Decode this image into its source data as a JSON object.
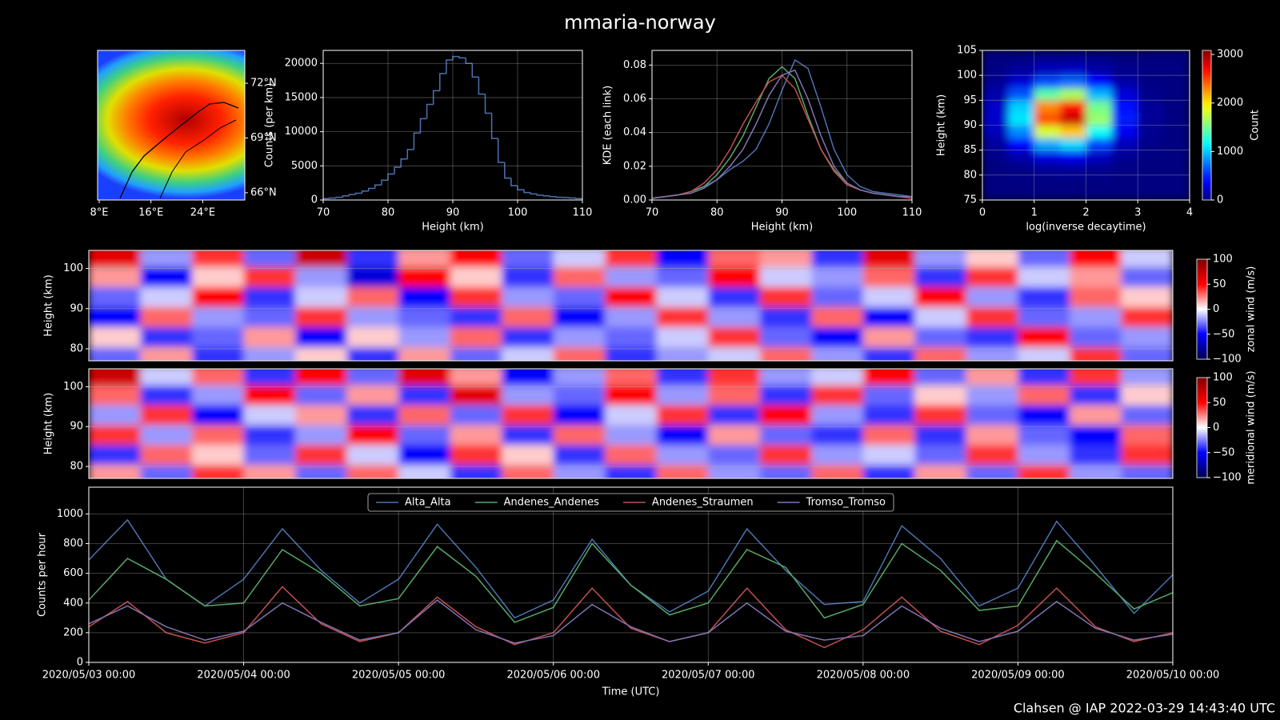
{
  "title": "mmaria-norway",
  "footer": "Clahsen @ IAP 2022-03-29 14:43:40 UTC",
  "chart_data": [
    {
      "type": "map",
      "xlim": [
        7.75,
        30.5
      ],
      "ylim": [
        65.6,
        73.8
      ],
      "xticks": [
        {
          "value": 8,
          "label": "8°E"
        },
        {
          "value": 16,
          "label": "16°E"
        },
        {
          "value": 24,
          "label": "24°E"
        }
      ],
      "yticks": [
        {
          "value": 66,
          "label": "66°N"
        },
        {
          "value": 69,
          "label": "69°N"
        },
        {
          "value": 72,
          "label": "72°N"
        }
      ],
      "ytick_side": "right"
    },
    {
      "type": "histogram",
      "xlabel": "Height (km)",
      "ylabel": "Counts (per km)",
      "color": "#4c72b0",
      "bins": [
        70,
        71,
        72,
        73,
        74,
        75,
        76,
        77,
        78,
        79,
        80,
        81,
        82,
        83,
        84,
        85,
        86,
        87,
        88,
        89,
        90,
        91,
        92,
        93,
        94,
        95,
        96,
        97,
        98,
        99,
        100,
        101,
        102,
        103,
        104,
        105,
        106,
        107,
        108,
        109,
        110
      ],
      "counts": [
        200,
        300,
        400,
        600,
        800,
        1000,
        1300,
        1700,
        2200,
        2900,
        3800,
        4800,
        6000,
        7400,
        9800,
        11900,
        14000,
        16000,
        18500,
        20500,
        21000,
        20800,
        20000,
        18000,
        15500,
        12700,
        9000,
        5500,
        3200,
        2100,
        1500,
        1100,
        900,
        700,
        600,
        500,
        400,
        350,
        300,
        200
      ],
      "xlim": [
        70,
        110
      ],
      "ylim": [
        0,
        21900
      ],
      "xticks": [
        70,
        80,
        90,
        100,
        110
      ],
      "yticks": [
        0,
        5000,
        10000,
        15000,
        20000
      ],
      "grid": true
    },
    {
      "type": "line",
      "xlabel": "Height (km)",
      "ylabel": "KDE (each link)",
      "x": [
        70,
        72,
        74,
        76,
        78,
        80,
        82,
        84,
        86,
        88,
        90,
        92,
        94,
        96,
        98,
        100,
        102,
        104,
        106,
        108,
        110
      ],
      "series": [
        {
          "color": "#4c72b0",
          "values": [
            0.001,
            0.002,
            0.003,
            0.005,
            0.008,
            0.012,
            0.018,
            0.023,
            0.03,
            0.045,
            0.065,
            0.083,
            0.078,
            0.055,
            0.03,
            0.015,
            0.008,
            0.005,
            0.004,
            0.003,
            0.002
          ]
        },
        {
          "color": "#55a868",
          "values": [
            0.001,
            0.002,
            0.003,
            0.005,
            0.008,
            0.015,
            0.025,
            0.038,
            0.055,
            0.072,
            0.079,
            0.072,
            0.05,
            0.03,
            0.018,
            0.01,
            0.006,
            0.004,
            0.003,
            0.002,
            0.002
          ]
        },
        {
          "color": "#c44e52",
          "values": [
            0.001,
            0.002,
            0.003,
            0.005,
            0.01,
            0.018,
            0.03,
            0.045,
            0.058,
            0.07,
            0.074,
            0.066,
            0.048,
            0.03,
            0.017,
            0.009,
            0.006,
            0.004,
            0.003,
            0.002,
            0.001
          ]
        },
        {
          "color": "#8172b2",
          "values": [
            0.001,
            0.002,
            0.003,
            0.004,
            0.007,
            0.012,
            0.02,
            0.03,
            0.045,
            0.062,
            0.074,
            0.077,
            0.06,
            0.038,
            0.02,
            0.01,
            0.006,
            0.004,
            0.003,
            0.002,
            0.002
          ]
        }
      ],
      "xlim": [
        70,
        110
      ],
      "ylim": [
        0,
        0.0887
      ],
      "xticks": [
        70,
        80,
        90,
        100,
        110
      ],
      "yticks": [
        {
          "value": 0,
          "label": "0.00"
        },
        {
          "value": 0.02,
          "label": "0.02"
        },
        {
          "value": 0.04,
          "label": "0.04"
        },
        {
          "value": 0.06,
          "label": "0.06"
        },
        {
          "value": 0.08,
          "label": "0.08"
        }
      ],
      "grid": true
    },
    {
      "type": "hist2d",
      "xlabel": "log(inverse decaytime)",
      "ylabel": "Height (km)",
      "x": [
        0.25,
        0.75,
        1.25,
        1.75,
        2.25,
        2.75,
        3.25,
        3.75
      ],
      "y": [
        76.25,
        78.75,
        81.25,
        83.75,
        86.25,
        88.75,
        91.25,
        93.75,
        96.25,
        98.75,
        101.25,
        103.75
      ],
      "values": [
        [
          0,
          0,
          1,
          1,
          1,
          0,
          0,
          0
        ],
        [
          1,
          4,
          10,
          12,
          7,
          2,
          0,
          0
        ],
        [
          6,
          30,
          68,
          79,
          45,
          13,
          2,
          0
        ],
        [
          29,
          133,
          302,
          349,
          198,
          58,
          8,
          1
        ],
        [
          86,
          400,
          907,
          1048,
          594,
          173,
          25,
          2
        ],
        [
          173,
          799,
          1814,
          2095,
          1188,
          346,
          50,
          3
        ],
        [
          235,
          1088,
          2470,
          2852,
          1617,
          470,
          68,
          5
        ],
        [
          218,
          1010,
          2293,
          2648,
          1502,
          437,
          63,
          4
        ],
        [
          137,
          633,
          1436,
          1659,
          941,
          274,
          39,
          3
        ],
        [
          58,
          266,
          605,
          698,
          396,
          115,
          17,
          1
        ],
        [
          17,
          77,
          174,
          201,
          114,
          33,
          5,
          0
        ],
        [
          3,
          14,
          33,
          38,
          21,
          6,
          1,
          0
        ]
      ],
      "xlim": [
        0,
        4
      ],
      "ylim": [
        75,
        105
      ],
      "xticks": [
        0,
        1,
        2,
        3,
        4
      ],
      "yticks": [
        75,
        80,
        85,
        90,
        95,
        100,
        105
      ],
      "grid": true,
      "colorbar": {
        "label": "Count",
        "lim": [
          0,
          3084
        ],
        "ticks": [
          0,
          1000,
          2000,
          3000
        ],
        "colormap": "jet"
      }
    },
    {
      "type": "heatmap",
      "ylabel": "Height (km)",
      "times": [
        "2020/05/03 04:00",
        "2020/05/03 12:00",
        "2020/05/03 20:00",
        "2020/05/04 04:00",
        "2020/05/04 12:00",
        "2020/05/04 20:00",
        "2020/05/05 04:00",
        "2020/05/05 12:00",
        "2020/05/05 20:00",
        "2020/05/06 04:00",
        "2020/05/06 12:00",
        "2020/05/06 20:00",
        "2020/05/07 04:00",
        "2020/05/07 12:00",
        "2020/05/07 20:00",
        "2020/05/08 04:00",
        "2020/05/08 12:00",
        "2020/05/08 20:00",
        "2020/05/09 04:00",
        "2020/05/09 12:00",
        "2020/05/09 20:00"
      ],
      "heights": [
        78,
        83,
        88,
        93,
        98,
        103
      ],
      "values": [
        [
          -30,
          20,
          -40,
          -20,
          10,
          -40,
          20,
          -30,
          -10,
          30,
          -40,
          -20,
          -10,
          30,
          -20,
          -40,
          30,
          -20,
          -10,
          40,
          -30
        ],
        [
          10,
          -40,
          -30,
          20,
          -50,
          10,
          -20,
          30,
          -40,
          -20,
          -30,
          -10,
          40,
          -30,
          -50,
          20,
          -30,
          -40,
          50,
          -30,
          -20
        ],
        [
          -50,
          30,
          -20,
          -30,
          40,
          -20,
          -30,
          -40,
          30,
          -50,
          -20,
          40,
          -20,
          -40,
          30,
          -50,
          -10,
          40,
          -30,
          -20,
          40
        ],
        [
          -30,
          -10,
          50,
          -40,
          -10,
          30,
          -50,
          40,
          -20,
          -30,
          50,
          -10,
          -40,
          40,
          -30,
          -10,
          50,
          -20,
          -40,
          30,
          10
        ],
        [
          20,
          -50,
          10,
          40,
          -20,
          -60,
          50,
          10,
          -40,
          30,
          -20,
          -30,
          50,
          -10,
          -20,
          30,
          -40,
          40,
          -10,
          20,
          -30
        ],
        [
          60,
          -20,
          40,
          -30,
          70,
          -40,
          20,
          50,
          -30,
          -10,
          40,
          -50,
          30,
          20,
          -40,
          60,
          -20,
          10,
          -30,
          50,
          -10
        ]
      ],
      "xlim": [
        "2020/05/03 00:00",
        "2020/05/10 00:00"
      ],
      "ylim": [
        77,
        104.5
      ],
      "yticks": [
        80,
        90,
        100
      ],
      "grid": true,
      "colorbar": {
        "label": "zonal wind (m/s)",
        "lim": [
          -100,
          100
        ],
        "ticks": [
          {
            "value": -100,
            "label": "−100"
          },
          {
            "value": -50,
            "label": "−50"
          },
          0,
          50,
          100
        ],
        "colormap": "seismic"
      }
    },
    {
      "type": "heatmap",
      "ylabel": "Height (km)",
      "times": [
        "2020/05/03 04:00",
        "2020/05/03 12:00",
        "2020/05/03 20:00",
        "2020/05/04 04:00",
        "2020/05/04 12:00",
        "2020/05/04 20:00",
        "2020/05/05 04:00",
        "2020/05/05 12:00",
        "2020/05/05 20:00",
        "2020/05/06 04:00",
        "2020/05/06 12:00",
        "2020/05/06 20:00",
        "2020/05/07 04:00",
        "2020/05/07 12:00",
        "2020/05/07 20:00",
        "2020/05/08 04:00",
        "2020/05/08 12:00",
        "2020/05/08 20:00",
        "2020/05/09 04:00",
        "2020/05/09 12:00",
        "2020/05/09 20:00"
      ],
      "heights": [
        78,
        83,
        88,
        93,
        98,
        103
      ],
      "values": [
        [
          20,
          -30,
          40,
          20,
          -30,
          30,
          -10,
          -40,
          30,
          -20,
          -40,
          30,
          -20,
          -30,
          30,
          -40,
          20,
          -30,
          40,
          -20,
          -30
        ],
        [
          -40,
          30,
          10,
          -30,
          40,
          -10,
          -50,
          40,
          10,
          -40,
          30,
          -20,
          -30,
          40,
          -20,
          -10,
          -30,
          40,
          -20,
          -40,
          40
        ],
        [
          40,
          -20,
          30,
          -40,
          -20,
          50,
          -30,
          20,
          -40,
          30,
          -20,
          -50,
          20,
          -30,
          -40,
          30,
          -40,
          20,
          -30,
          -50,
          30
        ],
        [
          -20,
          40,
          -50,
          -10,
          20,
          -40,
          30,
          -30,
          40,
          -50,
          -10,
          40,
          -40,
          50,
          -20,
          -40,
          40,
          -30,
          -50,
          20,
          -30
        ],
        [
          30,
          -40,
          -20,
          50,
          -30,
          20,
          -40,
          60,
          -20,
          -30,
          50,
          -20,
          30,
          -40,
          40,
          -30,
          10,
          -20,
          30,
          -40,
          10
        ],
        [
          70,
          -10,
          30,
          -40,
          50,
          -30,
          60,
          20,
          -50,
          -20,
          30,
          -40,
          40,
          -20,
          -10,
          50,
          -30,
          20,
          -40,
          40,
          -20
        ]
      ],
      "xlim": [
        "2020/05/03 00:00",
        "2020/05/10 00:00"
      ],
      "ylim": [
        77,
        104.5
      ],
      "yticks": [
        80,
        90,
        100
      ],
      "grid": true,
      "colorbar": {
        "label": "meridional wind (m/s)",
        "lim": [
          -100,
          100
        ],
        "ticks": [
          {
            "value": -100,
            "label": "−100"
          },
          {
            "value": -50,
            "label": "−50"
          },
          0,
          50,
          100
        ],
        "colormap": "seismic"
      }
    },
    {
      "type": "line",
      "xlabel": "Time (UTC)",
      "ylabel": "Counts per hour",
      "x": [
        "2020/05/03 00:00",
        "2020/05/03 06:00",
        "2020/05/03 12:00",
        "2020/05/03 18:00",
        "2020/05/04 00:00",
        "2020/05/04 06:00",
        "2020/05/04 12:00",
        "2020/05/04 18:00",
        "2020/05/05 00:00",
        "2020/05/05 06:00",
        "2020/05/05 12:00",
        "2020/05/05 18:00",
        "2020/05/06 00:00",
        "2020/05/06 06:00",
        "2020/05/06 12:00",
        "2020/05/06 18:00",
        "2020/05/07 00:00",
        "2020/05/07 06:00",
        "2020/05/07 12:00",
        "2020/05/07 18:00",
        "2020/05/08 00:00",
        "2020/05/08 06:00",
        "2020/05/08 12:00",
        "2020/05/08 18:00",
        "2020/05/09 00:00",
        "2020/05/09 06:00",
        "2020/05/09 12:00",
        "2020/05/09 18:00",
        "2020/05/10 00:00"
      ],
      "series": [
        {
          "name": "Alta_Alta",
          "color": "#4c72b0",
          "values": [
            690,
            960,
            560,
            380,
            560,
            900,
            620,
            400,
            560,
            930,
            640,
            300,
            420,
            830,
            520,
            340,
            480,
            900,
            620,
            390,
            410,
            920,
            700,
            380,
            500,
            950,
            650,
            330,
            590
          ]
        },
        {
          "name": "Andenes_Andenes",
          "color": "#55a868",
          "values": [
            420,
            700,
            560,
            380,
            400,
            760,
            600,
            380,
            430,
            780,
            580,
            270,
            370,
            800,
            520,
            320,
            400,
            760,
            640,
            300,
            390,
            800,
            620,
            350,
            380,
            820,
            600,
            360,
            470
          ]
        },
        {
          "name": "Andenes_Straumen",
          "color": "#c44e52",
          "values": [
            240,
            410,
            200,
            130,
            200,
            510,
            260,
            140,
            200,
            440,
            240,
            120,
            200,
            500,
            230,
            140,
            200,
            500,
            220,
            100,
            220,
            440,
            210,
            120,
            250,
            500,
            240,
            140,
            200
          ]
        },
        {
          "name": "Tromso_Tromso",
          "color": "#8172b2",
          "values": [
            260,
            380,
            240,
            150,
            210,
            400,
            270,
            150,
            200,
            420,
            220,
            130,
            180,
            390,
            240,
            140,
            200,
            400,
            210,
            150,
            180,
            380,
            230,
            140,
            210,
            410,
            230,
            150,
            190
          ]
        }
      ],
      "xlim": [
        "2020/05/03 00:00",
        "2020/05/10 00:00"
      ],
      "ylim": [
        0,
        1180
      ],
      "xticks": [
        "2020/05/03 00:00",
        "2020/05/04 00:00",
        "2020/05/05 00:00",
        "2020/05/06 00:00",
        "2020/05/07 00:00",
        "2020/05/08 00:00",
        "2020/05/09 00:00",
        "2020/05/10 00:00"
      ],
      "yticks": [
        0,
        200,
        400,
        600,
        800,
        1000
      ],
      "grid": true,
      "legend": "upper center"
    }
  ]
}
